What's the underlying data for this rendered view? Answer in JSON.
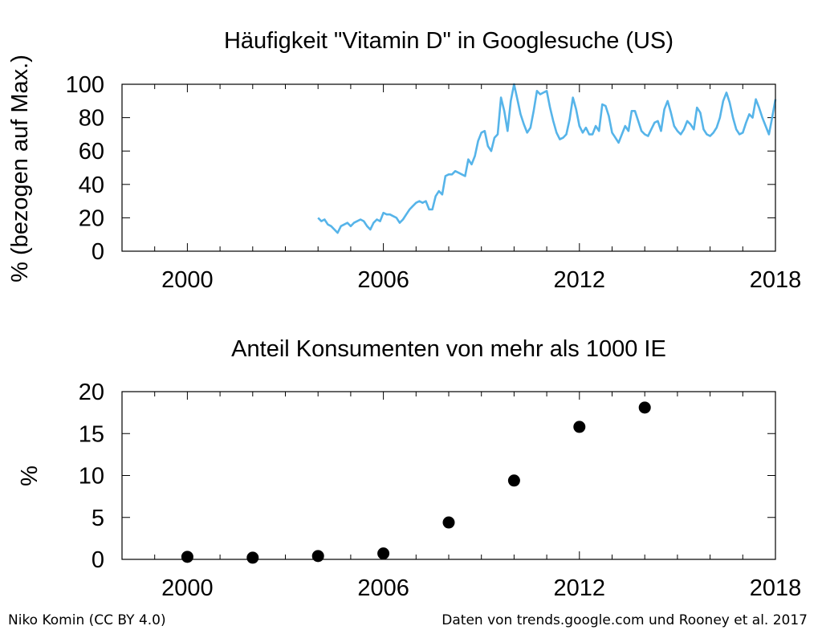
{
  "chart_data": [
    {
      "type": "line",
      "title": "Häufigkeit \"Vitamin D\" in Googlesuche (US)",
      "xlabel": "",
      "ylabel": "% (bezogen auf Max.)",
      "xlim": [
        1998,
        2018
      ],
      "ylim": [
        0,
        100
      ],
      "xticks": [
        2000,
        2006,
        2012,
        2018
      ],
      "yticks": [
        0,
        20,
        40,
        60,
        80,
        100
      ],
      "x_minor_step": 1,
      "grid": false,
      "line_color": "#56b4e9",
      "series": [
        {
          "x": [
            2004.0,
            2004.1,
            2004.2,
            2004.3,
            2004.4,
            2004.5,
            2004.6,
            2004.7,
            2004.8,
            2004.9,
            2005.0,
            2005.1,
            2005.2,
            2005.3,
            2005.4,
            2005.5,
            2005.6,
            2005.7,
            2005.8,
            2005.9,
            2006.0,
            2006.1,
            2006.2,
            2006.3,
            2006.4,
            2006.5,
            2006.6,
            2006.7,
            2006.8,
            2006.9,
            2007.0,
            2007.1,
            2007.2,
            2007.3,
            2007.4,
            2007.5,
            2007.6,
            2007.7,
            2007.8,
            2007.9,
            2008.0,
            2008.1,
            2008.2,
            2008.3,
            2008.4,
            2008.5,
            2008.6,
            2008.7,
            2008.8,
            2008.9,
            2009.0,
            2009.1,
            2009.2,
            2009.3,
            2009.4,
            2009.5,
            2009.6,
            2009.7,
            2009.8,
            2009.9,
            2010.0,
            2010.1,
            2010.2,
            2010.3,
            2010.4,
            2010.5,
            2010.6,
            2010.7,
            2010.8,
            2010.9,
            2011.0,
            2011.1,
            2011.2,
            2011.3,
            2011.4,
            2011.5,
            2011.6,
            2011.7,
            2011.8,
            2011.9,
            2012.0,
            2012.1,
            2012.2,
            2012.3,
            2012.4,
            2012.5,
            2012.6,
            2012.7,
            2012.8,
            2012.9,
            2013.0,
            2013.1,
            2013.2,
            2013.3,
            2013.4,
            2013.5,
            2013.6,
            2013.7,
            2013.8,
            2013.9,
            2014.0,
            2014.1,
            2014.2,
            2014.3,
            2014.4,
            2014.5,
            2014.6,
            2014.7,
            2014.8,
            2014.9,
            2015.0,
            2015.1,
            2015.2,
            2015.3,
            2015.4,
            2015.5,
            2015.6,
            2015.7,
            2015.8,
            2015.9,
            2016.0,
            2016.1,
            2016.2,
            2016.3,
            2016.4,
            2016.5,
            2016.6,
            2016.7,
            2016.8,
            2016.9,
            2017.0,
            2017.1,
            2017.2,
            2017.3,
            2017.4,
            2017.5,
            2017.6,
            2017.7,
            2017.8,
            2017.9,
            2018.0
          ],
          "values": [
            20,
            18,
            19,
            16,
            15,
            13,
            11,
            15,
            16,
            17,
            15,
            17,
            18,
            19,
            18,
            15,
            13,
            17,
            19,
            18,
            23,
            22,
            22,
            21,
            20,
            17,
            19,
            22,
            25,
            27,
            29,
            30,
            29,
            30,
            25,
            25,
            33,
            36,
            34,
            45,
            46,
            46,
            48,
            47,
            46,
            45,
            55,
            52,
            57,
            66,
            71,
            72,
            63,
            60,
            68,
            70,
            92,
            84,
            72,
            90,
            100,
            91,
            82,
            76,
            71,
            74,
            84,
            96,
            94,
            95,
            96,
            86,
            78,
            71,
            67,
            68,
            70,
            79,
            92,
            85,
            75,
            71,
            74,
            70,
            70,
            75,
            72,
            88,
            87,
            81,
            71,
            68,
            65,
            70,
            75,
            72,
            84,
            84,
            78,
            72,
            70,
            69,
            73,
            77,
            78,
            72,
            85,
            90,
            83,
            75,
            72,
            70,
            73,
            78,
            76,
            73,
            86,
            83,
            73,
            70,
            69,
            71,
            74,
            80,
            90,
            95,
            89,
            80,
            73,
            70,
            71,
            77,
            82,
            80,
            91,
            86,
            80,
            75,
            70,
            80,
            91
          ]
        }
      ]
    },
    {
      "type": "scatter",
      "title": "Anteil Konsumenten von mehr als 1000 IE",
      "xlabel": "",
      "ylabel": "%",
      "xlim": [
        1998,
        2018
      ],
      "ylim": [
        0,
        20
      ],
      "xticks": [
        2000,
        2006,
        2012,
        2018
      ],
      "yticks": [
        0,
        5,
        10,
        15,
        20
      ],
      "x_minor_step": 1,
      "grid": false,
      "marker_color": "#000000",
      "series": [
        {
          "x": [
            2000,
            2002,
            2004,
            2006,
            2008,
            2010,
            2012,
            2014
          ],
          "values": [
            0.3,
            0.2,
            0.4,
            0.7,
            4.4,
            9.4,
            15.8,
            18.1
          ]
        }
      ]
    }
  ],
  "credits": {
    "author": "Niko Komin (CC BY 4.0)",
    "source": "Daten von trends.google.com und Rooney et al. 2017"
  }
}
